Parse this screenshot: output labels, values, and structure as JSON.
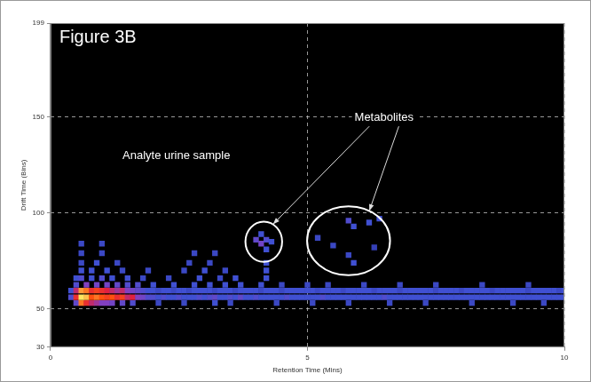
{
  "chart_data": {
    "type": "heatmap",
    "title": "Figure 3B",
    "x_label": "Retention Time (Mins)",
    "y_label": "Drift Time (Bins)",
    "xlim": [
      0,
      10
    ],
    "xticks": [
      0,
      5,
      10
    ],
    "ylim": [
      30,
      199
    ],
    "yticks": [
      30,
      50,
      100,
      150,
      199
    ],
    "grid": true,
    "cells": [
      {
        "y": 56,
        "x": [
          0.4,
          0.5,
          0.6,
          0.7,
          0.8,
          0.9,
          1.0,
          1.1,
          1.2,
          1.3,
          1.4,
          1.5,
          1.6,
          1.7,
          1.8,
          1.9,
          2.0,
          2.1,
          2.2,
          2.3,
          2.4,
          2.5,
          2.6,
          2.7,
          2.8,
          2.9,
          3.0,
          3.1,
          3.2,
          3.3,
          3.4,
          3.5,
          3.6,
          3.7,
          3.8,
          3.9,
          4.0,
          4.1,
          4.2,
          4.3,
          4.4,
          4.5,
          4.6,
          4.7,
          4.8,
          4.9,
          5.0,
          5.1,
          5.2,
          5.3,
          5.4,
          5.5,
          5.6,
          5.7,
          5.8,
          5.9,
          6.0,
          6.1,
          6.2,
          6.3,
          6.4,
          6.5,
          6.6,
          6.7,
          6.8,
          6.9,
          7.0,
          7.1,
          7.2,
          7.3,
          7.4,
          7.5,
          7.6,
          7.7,
          7.8,
          7.9,
          8.0,
          8.1,
          8.2,
          8.3,
          8.4,
          8.5,
          8.6,
          8.7,
          8.8,
          8.9,
          9.0,
          9.1,
          9.2,
          9.3,
          9.4,
          9.5,
          9.6,
          9.7,
          9.8,
          9.9,
          10.0
        ],
        "values": [
          0.35,
          0.7,
          1.0,
          0.95,
          0.8,
          0.85,
          0.8,
          0.75,
          0.8,
          0.7,
          0.75,
          0.6,
          0.65,
          0.5,
          0.45,
          0.35,
          0.35,
          0.3,
          0.35,
          0.3,
          0.3,
          0.35,
          0.3,
          0.3,
          0.3,
          0.35,
          0.3,
          0.35,
          0.4,
          0.3,
          0.3,
          0.35,
          0.3,
          0.4,
          0.3,
          0.3,
          0.35,
          0.3,
          0.3,
          0.3,
          0.3,
          0.3,
          0.35,
          0.3,
          0.3,
          0.3,
          0.3,
          0.3,
          0.3,
          0.35,
          0.3,
          0.3,
          0.3,
          0.3,
          0.3,
          0.3,
          0.3,
          0.3,
          0.3,
          0.3,
          0.3,
          0.35,
          0.3,
          0.3,
          0.3,
          0.3,
          0.3,
          0.3,
          0.3,
          0.3,
          0.3,
          0.3,
          0.3,
          0.3,
          0.3,
          0.3,
          0.3,
          0.3,
          0.3,
          0.3,
          0.3,
          0.3,
          0.3,
          0.3,
          0.3,
          0.3,
          0.3,
          0.3,
          0.3,
          0.3,
          0.3,
          0.3,
          0.3,
          0.3,
          0.3,
          0.3,
          0.3
        ]
      },
      {
        "y": 59.5,
        "x": [
          0.4,
          0.5,
          0.6,
          0.7,
          0.8,
          0.9,
          1.0,
          1.1,
          1.2,
          1.3,
          1.4,
          1.5,
          1.6,
          1.7,
          1.8,
          1.9,
          2.0,
          2.1,
          2.2,
          2.3,
          2.4,
          2.5,
          2.6,
          2.7,
          2.8,
          2.9,
          3.0,
          3.1,
          3.2,
          3.3,
          3.4,
          3.5,
          3.6,
          3.7,
          3.8,
          3.9,
          4.0,
          4.1,
          4.2,
          4.3,
          4.4,
          4.5,
          4.6,
          4.7,
          4.8,
          4.9,
          5.0,
          5.1,
          5.2,
          5.3,
          5.4,
          5.5,
          5.6,
          5.7,
          5.8,
          5.9,
          6.0,
          6.1,
          6.2,
          6.3,
          6.4,
          6.5,
          6.6,
          6.7,
          6.8,
          6.9,
          7.0,
          7.1,
          7.2,
          7.3,
          7.4,
          7.5,
          7.6,
          7.7,
          7.8,
          7.9,
          8.0,
          8.1,
          8.2,
          8.3,
          8.4,
          8.5,
          8.6,
          8.7,
          8.8,
          8.9,
          9.0,
          9.1,
          9.2,
          9.3,
          9.4,
          9.5,
          9.6,
          9.7,
          9.8,
          9.9,
          10.0
        ],
        "values": [
          0.3,
          0.6,
          0.9,
          0.85,
          0.7,
          0.75,
          0.7,
          0.65,
          0.6,
          0.55,
          0.6,
          0.5,
          0.45,
          0.4,
          0.35,
          0.3,
          0.3,
          0.25,
          0.3,
          0.3,
          0.25,
          0.3,
          0.3,
          0.25,
          0.3,
          0.3,
          0.3,
          0.3,
          0.25,
          0.3,
          0.3,
          0.3,
          0.25,
          0.3,
          0.3,
          0.3,
          0.3,
          0.25,
          0.3,
          0.3,
          0.3,
          0.25,
          0.3,
          0.3,
          0.3,
          0.3,
          0.3,
          0.3,
          0.25,
          0.3,
          0.3,
          0.3,
          0.3,
          0.25,
          0.3,
          0.3,
          0.3,
          0.3,
          0.3,
          0.25,
          0.3,
          0.3,
          0.3,
          0.3,
          0.25,
          0.3,
          0.3,
          0.3,
          0.3,
          0.3,
          0.3,
          0.25,
          0.3,
          0.3,
          0.3,
          0.3,
          0.25,
          0.3,
          0.3,
          0.3,
          0.3,
          0.3,
          0.25,
          0.3,
          0.3,
          0.3,
          0.3,
          0.3,
          0.3,
          0.25,
          0.3,
          0.3,
          0.3,
          0.3,
          0.3,
          0.25,
          0.3
        ]
      },
      {
        "y": 53,
        "x": [
          0.5,
          0.6,
          0.7,
          0.8,
          0.9,
          1.0,
          1.1,
          1.2,
          1.4,
          1.6,
          2.1,
          2.6,
          3.2,
          3.5,
          4.4,
          5.1,
          5.8,
          6.6,
          7.3,
          8.2,
          9.0,
          9.6
        ],
        "values": [
          0.4,
          0.85,
          0.7,
          0.6,
          0.55,
          0.5,
          0.5,
          0.45,
          0.4,
          0.35,
          0.25,
          0.25,
          0.3,
          0.25,
          0.25,
          0.25,
          0.25,
          0.25,
          0.25,
          0.25,
          0.25,
          0.25
        ]
      },
      {
        "y": 62.5,
        "x": [
          0.5,
          0.7,
          0.9,
          1.1,
          1.3,
          1.5,
          1.7,
          2.0,
          2.4,
          2.8,
          3.1,
          3.4,
          3.7,
          4.1,
          4.5,
          5.0,
          5.4,
          6.1,
          6.8,
          7.5,
          8.4,
          9.3
        ],
        "values": [
          0.35,
          0.5,
          0.45,
          0.45,
          0.4,
          0.35,
          0.35,
          0.3,
          0.3,
          0.3,
          0.3,
          0.3,
          0.3,
          0.3,
          0.25,
          0.25,
          0.25,
          0.25,
          0.25,
          0.25,
          0.25,
          0.25
        ]
      },
      {
        "y": 66,
        "x": [
          0.5,
          0.6,
          0.8,
          1.0,
          1.2,
          1.5,
          1.8,
          2.3,
          2.9,
          3.3,
          3.6,
          4.2
        ],
        "values": [
          0.3,
          0.35,
          0.3,
          0.35,
          0.3,
          0.3,
          0.25,
          0.25,
          0.3,
          0.25,
          0.3,
          0.3
        ]
      },
      {
        "y": 70,
        "x": [
          0.6,
          0.8,
          1.1,
          1.4,
          1.9,
          2.6,
          3.0,
          3.4,
          4.2
        ],
        "values": [
          0.3,
          0.3,
          0.3,
          0.25,
          0.25,
          0.25,
          0.3,
          0.25,
          0.3
        ]
      },
      {
        "y": 74,
        "x": [
          0.6,
          0.9,
          1.3,
          2.7,
          3.1,
          4.2
        ],
        "values": [
          0.25,
          0.3,
          0.25,
          0.25,
          0.25,
          0.3
        ]
      },
      {
        "y": 79,
        "x": [
          0.6,
          1.0,
          2.8,
          3.2
        ],
        "values": [
          0.25,
          0.25,
          0.25,
          0.25
        ]
      },
      {
        "y": 84,
        "x": [
          0.6,
          1.0
        ],
        "values": [
          0.25,
          0.25
        ]
      }
    ],
    "annotations": [
      {
        "text": "Analyte urine sample"
      },
      {
        "text": "Metabolites",
        "regions": [
          {
            "x": [
              4.0,
              4.1,
              4.2,
              4.1,
              4.2,
              4.3
            ],
            "y": [
              86,
              84,
              86,
              89,
              81,
              85
            ],
            "values": [
              0.4,
              0.45,
              0.35,
              0.3,
              0.3,
              0.3
            ]
          },
          {
            "x": [
              5.2,
              5.5,
              5.8,
              5.9,
              6.2,
              6.4,
              5.9,
              5.8,
              6.3
            ],
            "y": [
              87,
              83,
              96,
              93,
              95,
              97,
              74,
              78,
              82
            ],
            "values": [
              0.25,
              0.25,
              0.35,
              0.3,
              0.3,
              0.3,
              0.3,
              0.25,
              0.2
            ]
          }
        ]
      }
    ]
  }
}
